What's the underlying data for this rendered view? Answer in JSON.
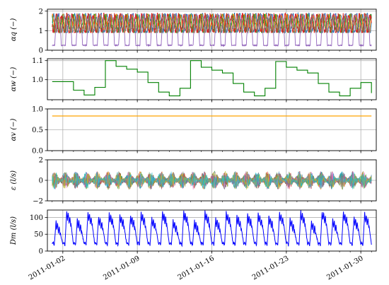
{
  "chart_data": [
    {
      "type": "line",
      "ylabel": "αq (−)",
      "ylim": [
        0,
        2.1
      ],
      "yticks": [
        0,
        1,
        2
      ],
      "ytick_labels": [
        "0",
        "1",
        "2"
      ],
      "grid": true,
      "pattern": "multi-series daily cycle, one low-amplitude purple series reaching ~0.2 minima and ~1.9 peaks; four other series (blue, orange, green, red) oscillating ~1.0–1.9",
      "series": [
        {
          "color": "#1f77b4",
          "min": 0.9,
          "max": 1.9
        },
        {
          "color": "#ff7f0e",
          "min": 0.9,
          "max": 1.85
        },
        {
          "color": "#2ca02c",
          "min": 0.9,
          "max": 1.85
        },
        {
          "color": "#d62728",
          "min": 0.9,
          "max": 1.9
        },
        {
          "color": "#9467bd",
          "min": 0.2,
          "max": 1.85
        }
      ]
    },
    {
      "type": "line",
      "ylabel": "αw (−)",
      "ylim": [
        0.895,
        1.11
      ],
      "yticks": [
        1.0,
        1.1
      ],
      "ytick_labels": [
        "1.0",
        "1.1"
      ],
      "grid": true,
      "series": [
        {
          "color": "#008000",
          "step_x": [
            "2011-01-01",
            "2011-01-03",
            "2011-01-04",
            "2011-01-05",
            "2011-01-06",
            "2011-01-07",
            "2011-01-08",
            "2011-01-09",
            "2011-01-10",
            "2011-01-11",
            "2011-01-12",
            "2011-01-13",
            "2011-01-14",
            "2011-01-15",
            "2011-01-16",
            "2011-01-17",
            "2011-01-18",
            "2011-01-19",
            "2011-01-20",
            "2011-01-21",
            "2011-01-22",
            "2011-01-23",
            "2011-01-24",
            "2011-01-25",
            "2011-01-26",
            "2011-01-27",
            "2011-01-28",
            "2011-01-29",
            "2011-01-30",
            "2011-01-31"
          ],
          "step_y": [
            0.99,
            0.945,
            0.92,
            0.96,
            1.1,
            1.07,
            1.055,
            1.04,
            0.985,
            0.935,
            0.915,
            0.955,
            1.1,
            1.065,
            1.05,
            1.035,
            0.98,
            0.935,
            0.915,
            0.955,
            1.095,
            1.065,
            1.05,
            1.035,
            0.98,
            0.935,
            0.915,
            0.955,
            0.985,
            0.93
          ]
        }
      ]
    },
    {
      "type": "line",
      "ylabel": "αv (−)",
      "ylim": [
        0.0,
        1.0
      ],
      "yticks": [
        0.0,
        0.5,
        1.0
      ],
      "ytick_labels": [
        "0.0",
        "0.5",
        "1.0"
      ],
      "grid": true,
      "series": [
        {
          "color": "#ffa500",
          "x": [
            "2011-01-01",
            "2011-01-31"
          ],
          "values": [
            0.83,
            0.83
          ]
        }
      ]
    },
    {
      "type": "line",
      "ylabel": "ε (l/s)",
      "ylim": [
        -2,
        2
      ],
      "yticks": [
        -2,
        0,
        2
      ],
      "ytick_labels": [
        "−2",
        "0",
        "2"
      ],
      "grid": true,
      "pattern": "many noisy residual series centred on 0, spanning roughly −1.5 to 1.5",
      "series": [
        {
          "color": "#1f77b4"
        },
        {
          "color": "#ff7f0e"
        },
        {
          "color": "#2ca02c"
        },
        {
          "color": "#d62728"
        },
        {
          "color": "#9467bd"
        },
        {
          "color": "#8c564b"
        },
        {
          "color": "#e377c2"
        },
        {
          "color": "#7f7f7f"
        },
        {
          "color": "#bcbd22"
        },
        {
          "color": "#17becf"
        }
      ]
    },
    {
      "type": "line",
      "ylabel": "Dm (l/s)",
      "ylim": [
        0,
        122
      ],
      "yticks": [
        0,
        50,
        100
      ],
      "ytick_labels": [
        "0",
        "50",
        "100"
      ],
      "grid": true,
      "pattern": "daily demand cycle, minima ~15–25 l/s, morning peaks ~80–115 l/s",
      "series": [
        {
          "color": "#0000ff",
          "min": 15,
          "max": 115
        }
      ]
    }
  ],
  "x_axis": {
    "start": "2011-01-01",
    "end": "2011-01-31",
    "major_ticks": [
      "2011-01-02",
      "2011-01-09",
      "2011-01-16",
      "2011-01-23",
      "2011-01-30"
    ]
  }
}
